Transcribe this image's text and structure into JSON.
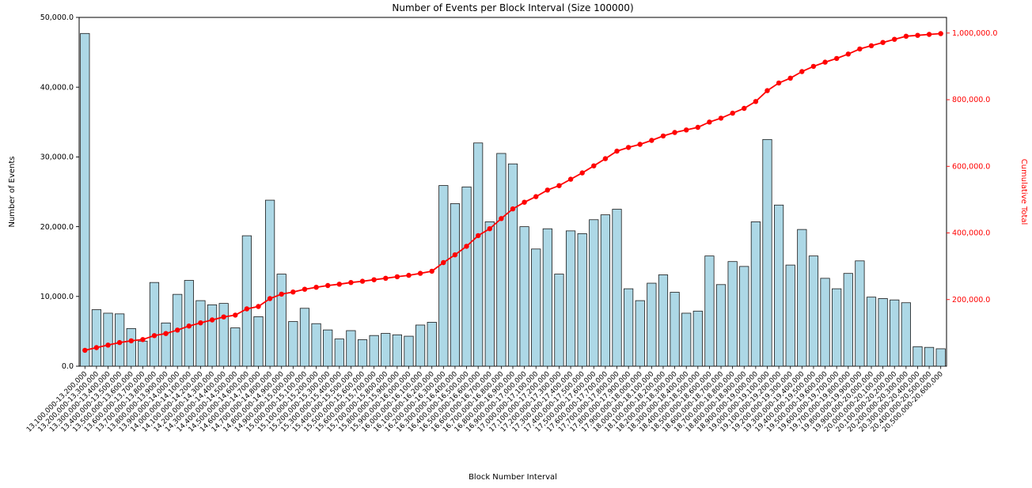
{
  "colors": {
    "background": "#ffffff",
    "bar_fill": "#add8e6",
    "bar_edge": "#1a1a1a",
    "line": "#ff0000",
    "axis": "#000000"
  },
  "chart_data": {
    "type": "bar",
    "title": "Number of Events per Block Interval (Size 100000)",
    "xlabel": "Block Number Interval",
    "ylabel": "Number of Events",
    "ylabel_secondary": "Cumulative Total",
    "ylim_left": [
      0,
      50000
    ],
    "ylim_right": [
      0,
      1047000
    ],
    "grid": false,
    "legend": "none",
    "categories": [
      "13,100,000-13,200,000",
      "13,200,000-13,300,000",
      "13,300,000-13,400,000",
      "13,400,000-13,500,000",
      "13,500,000-13,600,000",
      "13,600,000-13,700,000",
      "13,700,000-13,800,000",
      "13,800,000-13,900,000",
      "13,900,000-14,000,000",
      "14,000,000-14,100,000",
      "14,100,000-14,200,000",
      "14,200,000-14,300,000",
      "14,300,000-14,400,000",
      "14,400,000-14,500,000",
      "14,500,000-14,600,000",
      "14,600,000-14,700,000",
      "14,700,000-14,800,000",
      "14,800,000-14,900,000",
      "14,900,000-15,000,000",
      "15,000,000-15,100,000",
      "15,100,000-15,200,000",
      "15,200,000-15,300,000",
      "15,300,000-15,400,000",
      "15,400,000-15,500,000",
      "15,500,000-15,600,000",
      "15,600,000-15,700,000",
      "15,700,000-15,800,000",
      "15,800,000-15,900,000",
      "15,900,000-16,000,000",
      "16,000,000-16,100,000",
      "16,100,000-16,200,000",
      "16,200,000-16,300,000",
      "16,300,000-16,400,000",
      "16,400,000-16,500,000",
      "16,500,000-16,600,000",
      "16,600,000-16,700,000",
      "16,700,000-16,800,000",
      "16,800,000-16,900,000",
      "16,900,000-17,000,000",
      "17,000,000-17,100,000",
      "17,100,000-17,200,000",
      "17,200,000-17,300,000",
      "17,300,000-17,400,000",
      "17,400,000-17,500,000",
      "17,500,000-17,600,000",
      "17,600,000-17,700,000",
      "17,700,000-17,800,000",
      "17,800,000-17,900,000",
      "17,900,000-18,000,000",
      "18,000,000-18,100,000",
      "18,100,000-18,200,000",
      "18,200,000-18,300,000",
      "18,300,000-18,400,000",
      "18,400,000-18,500,000",
      "18,500,000-18,600,000",
      "18,600,000-18,700,000",
      "18,700,000-18,800,000",
      "18,800,000-18,900,000",
      "18,900,000-19,000,000",
      "19,000,000-19,100,000",
      "19,100,000-19,200,000",
      "19,200,000-19,300,000",
      "19,300,000-19,400,000",
      "19,400,000-19,500,000",
      "19,500,000-19,600,000",
      "19,600,000-19,700,000",
      "19,700,000-19,800,000",
      "19,800,000-19,900,000",
      "19,900,000-20,000,000",
      "20,000,000-20,100,000",
      "20,100,000-20,200,000",
      "20,200,000-20,300,000",
      "20,300,000-20,400,000",
      "20,400,000-20,500,000",
      "20,500,000-20,600,000"
    ],
    "series": [
      {
        "name": "Number of Events",
        "type": "bar",
        "axis": "left",
        "values": [
          47700,
          8100,
          7600,
          7500,
          5400,
          3600,
          12000,
          6200,
          10300,
          12300,
          9400,
          8800,
          9000,
          5500,
          18700,
          7100,
          23800,
          13200,
          6400,
          8300,
          6100,
          5200,
          3900,
          5100,
          3800,
          4400,
          4700,
          4500,
          4300,
          5900,
          6300,
          25900,
          23300,
          25700,
          32000,
          20700,
          30500,
          29000,
          20000,
          16800,
          19700,
          13200,
          19400,
          19000,
          21000,
          21700,
          22500,
          11100,
          9400,
          11900,
          13100,
          10600,
          7600,
          7900,
          15800,
          11700,
          15000,
          14300,
          20700,
          32500,
          23100,
          14500,
          19600,
          15800,
          12600,
          11100,
          13300,
          15100,
          9900,
          9700,
          9500,
          9100,
          2800,
          2700,
          2500
        ]
      },
      {
        "name": "Cumulative Total",
        "type": "line",
        "axis": "right",
        "values": [
          47700,
          55800,
          63400,
          70900,
          76300,
          79900,
          91900,
          98100,
          108400,
          120700,
          130100,
          138900,
          147900,
          153400,
          172100,
          179200,
          203000,
          216200,
          222600,
          230900,
          237000,
          242200,
          246100,
          251200,
          255000,
          259400,
          264100,
          268600,
          272900,
          278800,
          285100,
          311000,
          334300,
          360000,
          392000,
          412700,
          443200,
          472200,
          492200,
          509000,
          528700,
          541900,
          561300,
          580300,
          601300,
          623000,
          645500,
          656600,
          666000,
          677900,
          691000,
          701600,
          709200,
          717100,
          732900,
          744600,
          759600,
          773900,
          794600,
          827100,
          850200,
          864700,
          884300,
          900100,
          912700,
          923800,
          937100,
          952200,
          962100,
          971800,
          981300,
          990400,
          993200,
          995900,
          998400
        ]
      }
    ],
    "yticks_left": [
      {
        "v": 0,
        "label": "0.0"
      },
      {
        "v": 10000,
        "label": "10,000.0"
      },
      {
        "v": 20000,
        "label": "20,000.0"
      },
      {
        "v": 30000,
        "label": "30,000.0"
      },
      {
        "v": 40000,
        "label": "40,000.0"
      },
      {
        "v": 50000,
        "label": "50,000.0"
      }
    ],
    "yticks_right": [
      {
        "v": 200000,
        "label": "200,000.0"
      },
      {
        "v": 400000,
        "label": "400,000.0"
      },
      {
        "v": 600000,
        "label": "600,000.0"
      },
      {
        "v": 800000,
        "label": "800,000.0"
      },
      {
        "v": 1000000,
        "label": "1,000,000.0"
      }
    ]
  }
}
